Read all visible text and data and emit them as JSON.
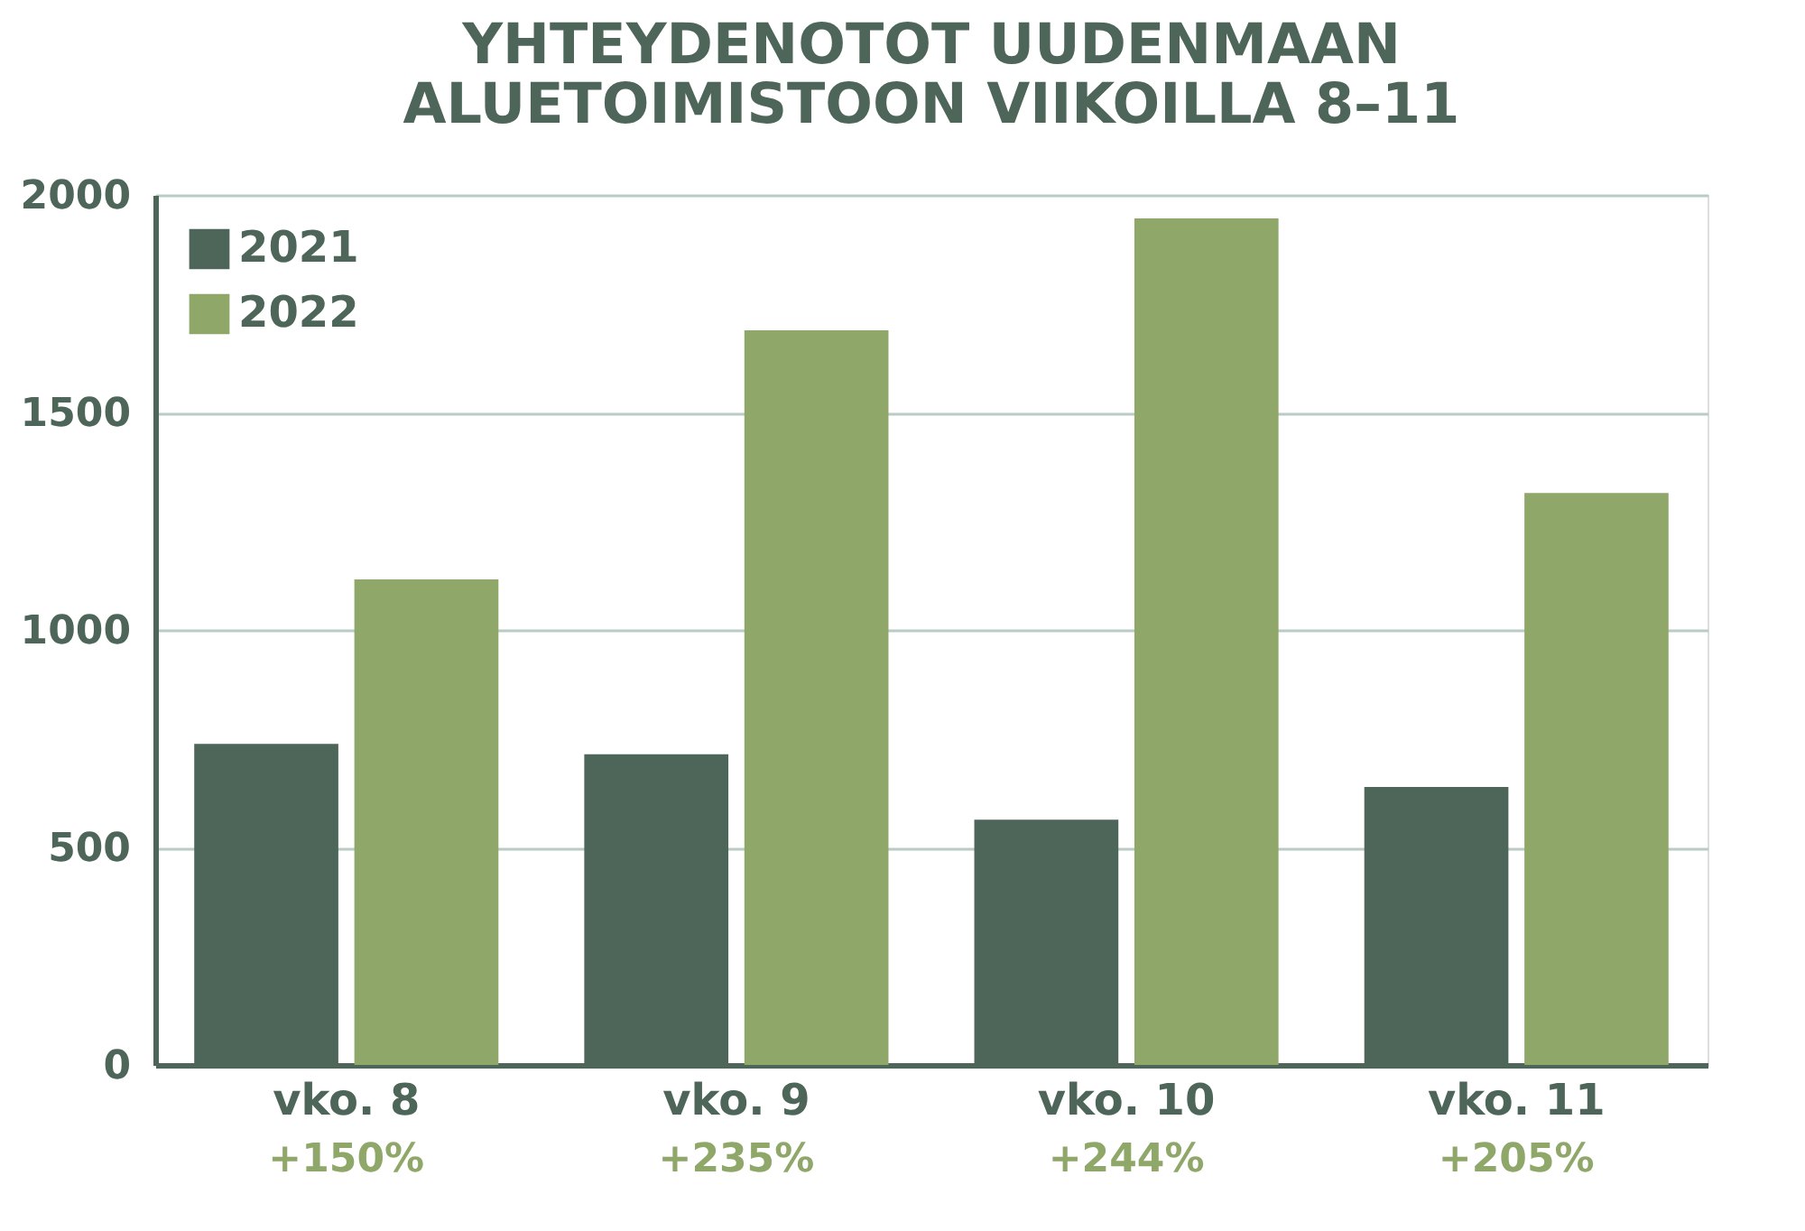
{
  "chart_data": {
    "type": "bar",
    "title": "YHTEYDENOTOT UUDENMAAN\nALUETOIMISTOON VIIKOILLA 8–11",
    "categories": [
      "vko. 8",
      "vko. 9",
      "vko. 10",
      "vko. 11"
    ],
    "series": [
      {
        "name": "2021",
        "color": "#4e665a",
        "values": [
          738,
          714,
          564,
          639
        ]
      },
      {
        "name": "2022",
        "color": "#8fa86a",
        "values": [
          1116,
          1689,
          1946,
          1315
        ]
      }
    ],
    "ylim": [
      0,
      2000
    ],
    "yticks": [
      0,
      500,
      1000,
      1500,
      2000
    ],
    "grid": "y",
    "legend": "top left",
    "annotations": [
      "+150%",
      "+235%",
      "+244%",
      "+205%"
    ]
  }
}
